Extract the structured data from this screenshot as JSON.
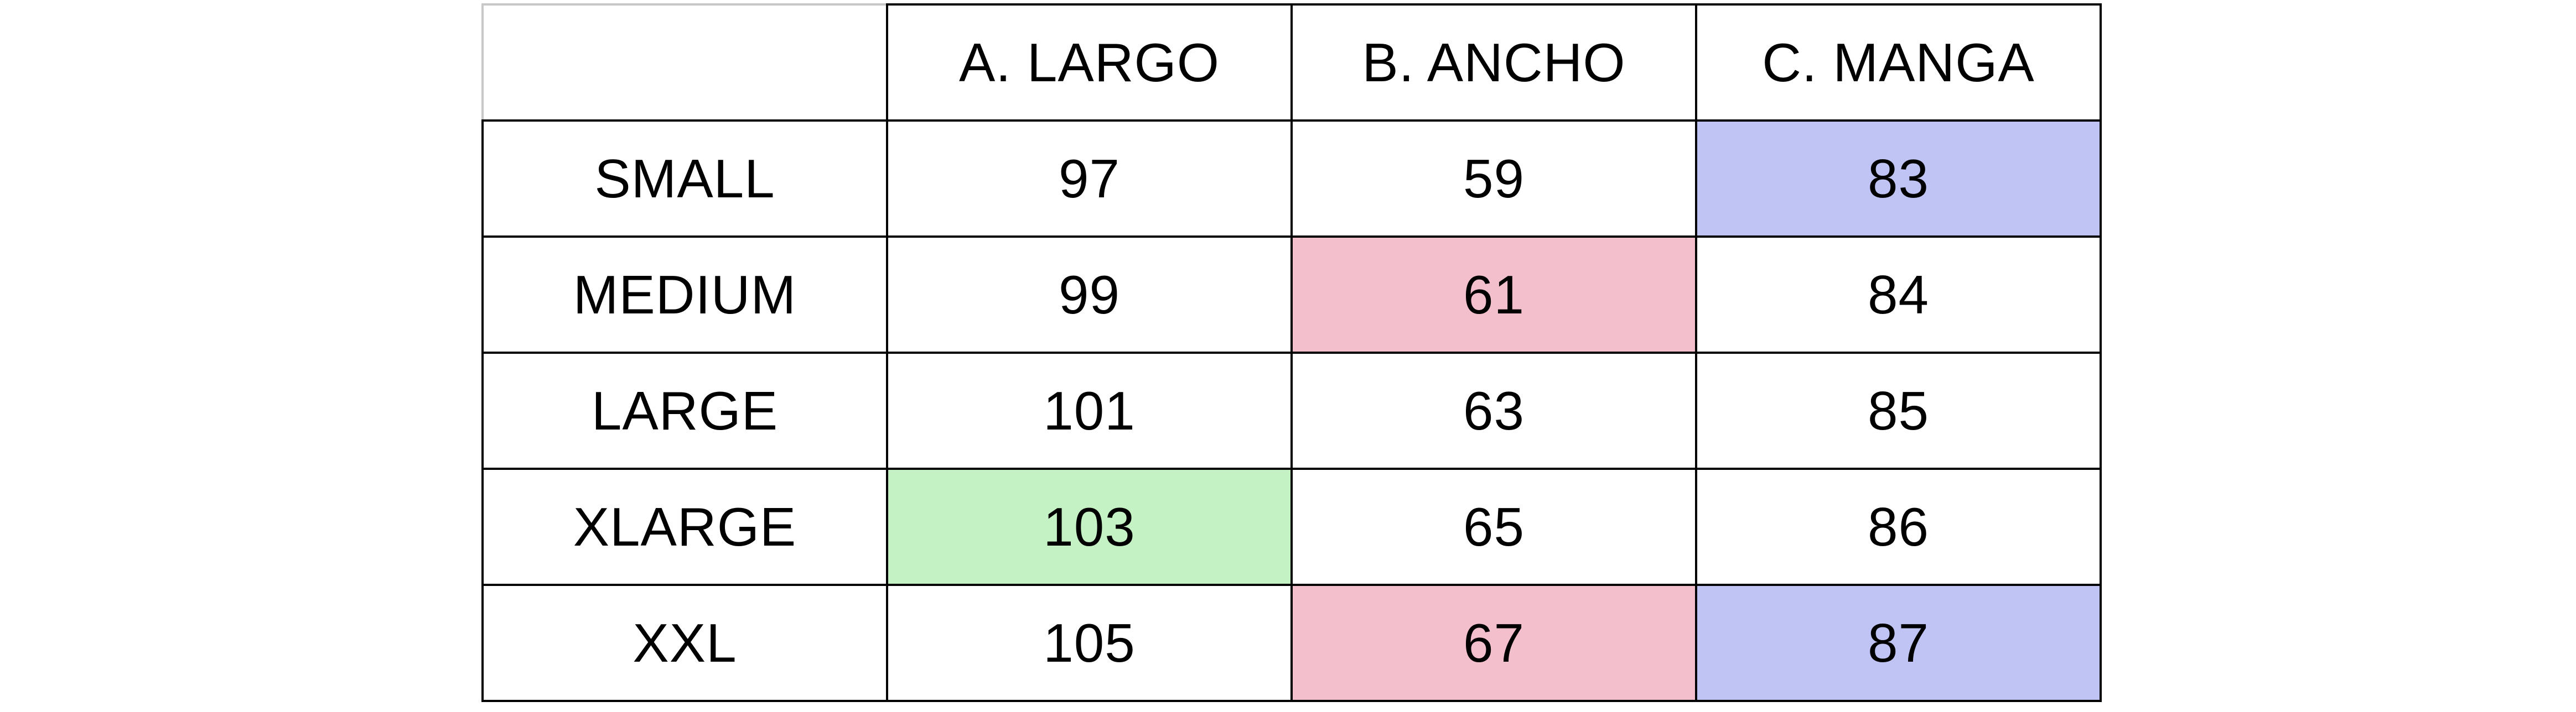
{
  "table": {
    "headers": [
      "",
      "A. LARGO",
      "B. ANCHO",
      "C. MANGA"
    ],
    "rows": [
      {
        "size": "SMALL",
        "largo": "97",
        "ancho": "59",
        "manga": "83"
      },
      {
        "size": "MEDIUM",
        "largo": "99",
        "ancho": "61",
        "manga": "84"
      },
      {
        "size": "LARGE",
        "largo": "101",
        "ancho": "63",
        "manga": "85"
      },
      {
        "size": "XLARGE",
        "largo": "103",
        "ancho": "65",
        "manga": "86"
      },
      {
        "size": "XXL",
        "largo": "105",
        "ancho": "67",
        "manga": "87"
      }
    ]
  },
  "highlight_colors": {
    "pink": "#f4bfcc",
    "blue": "#c0c4f4",
    "green": "#c4f2c4"
  }
}
